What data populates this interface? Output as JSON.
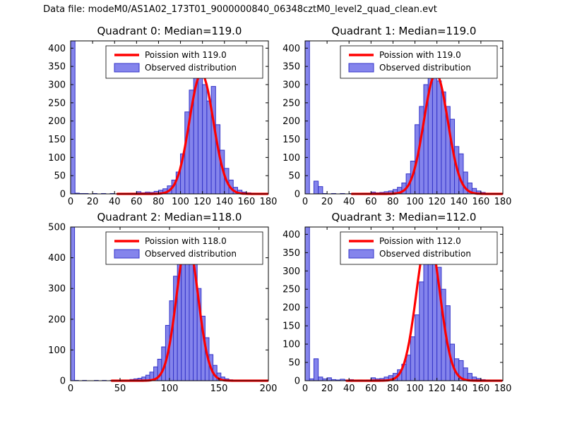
{
  "figure_title": "Data file: modeM0/AS1A02_173T01_9000000840_06348cztM0_level2_quad_clean.evt",
  "colors": {
    "hist_fill": "#8484ec",
    "hist_edge": "#3434c8",
    "curve": "#ff0000",
    "axis": "#000000",
    "background": "#ffffff",
    "legend_border": "#000000"
  },
  "chart_data": [
    {
      "type": "bar",
      "subtype": "histogram-with-fit-line",
      "title": "Quadrant 0: Median=119.0",
      "median": 119.0,
      "legend": [
        "Poission with 119.0",
        "Observed distribution"
      ],
      "legend_position": "upper right",
      "xlabel": "",
      "ylabel": "",
      "xlim": [
        0,
        180
      ],
      "ylim": [
        0,
        420
      ],
      "x_ticks": [
        0,
        20,
        40,
        60,
        80,
        100,
        120,
        140,
        160,
        180
      ],
      "y_ticks": [
        0,
        50,
        100,
        150,
        200,
        250,
        300,
        350,
        400
      ],
      "grid": false,
      "bin_start": 0,
      "bin_width": 4,
      "counts": [
        420,
        2,
        1,
        1,
        0,
        1,
        0,
        1,
        0,
        1,
        0,
        1,
        1,
        2,
        2,
        6,
        3,
        5,
        4,
        7,
        10,
        14,
        22,
        38,
        60,
        110,
        225,
        285,
        320,
        330,
        300,
        255,
        295,
        190,
        120,
        70,
        38,
        18,
        10,
        5,
        3,
        2,
        1,
        0,
        1
      ],
      "curve": {
        "label": "Poission with 119.0",
        "mean": 119.0,
        "sigma": 10.9,
        "amplitude": 330
      }
    },
    {
      "type": "bar",
      "subtype": "histogram-with-fit-line",
      "title": "Quadrant 1: Median=119.0",
      "median": 119.0,
      "legend": [
        "Poission with 119.0",
        "Observed distribution"
      ],
      "legend_position": "upper right",
      "xlabel": "",
      "ylabel": "",
      "xlim": [
        0,
        180
      ],
      "ylim": [
        0,
        420
      ],
      "x_ticks": [
        0,
        20,
        40,
        60,
        80,
        100,
        120,
        140,
        160,
        180
      ],
      "y_ticks": [
        0,
        50,
        100,
        150,
        200,
        250,
        300,
        350,
        400
      ],
      "grid": false,
      "bin_start": 0,
      "bin_width": 4,
      "counts": [
        420,
        0,
        35,
        20,
        1,
        0,
        1,
        0,
        1,
        0,
        1,
        1,
        1,
        2,
        2,
        5,
        3,
        4,
        6,
        8,
        12,
        18,
        30,
        55,
        90,
        190,
        240,
        300,
        330,
        320,
        310,
        280,
        240,
        205,
        130,
        110,
        60,
        30,
        15,
        8,
        4,
        2,
        1,
        1,
        0
      ],
      "curve": {
        "label": "Poission with 119.0",
        "mean": 119.0,
        "sigma": 10.9,
        "amplitude": 330
      }
    },
    {
      "type": "bar",
      "subtype": "histogram-with-fit-line",
      "title": "Quadrant 2: Median=118.0",
      "median": 118.0,
      "legend": [
        "Poission with 118.0",
        "Observed distribution"
      ],
      "legend_position": "upper right",
      "xlabel": "",
      "ylabel": "",
      "xlim": [
        0,
        200
      ],
      "ylim": [
        0,
        500
      ],
      "x_ticks": [
        0,
        50,
        100,
        150,
        200
      ],
      "y_ticks": [
        0,
        100,
        200,
        300,
        400,
        500
      ],
      "grid": false,
      "bin_start": 0,
      "bin_width": 4,
      "counts": [
        500,
        1,
        0,
        1,
        0,
        0,
        1,
        0,
        1,
        0,
        1,
        0,
        1,
        1,
        2,
        4,
        6,
        8,
        12,
        18,
        28,
        45,
        70,
        110,
        180,
        260,
        340,
        420,
        470,
        480,
        440,
        380,
        300,
        210,
        140,
        85,
        50,
        25,
        12,
        6,
        3,
        2,
        1,
        1,
        0,
        1,
        2,
        0,
        0,
        0
      ],
      "curve": {
        "label": "Poission with 118.0",
        "mean": 118.0,
        "sigma": 10.9,
        "amplitude": 455
      }
    },
    {
      "type": "bar",
      "subtype": "histogram-with-fit-line",
      "title": "Quadrant 3: Median=112.0",
      "median": 112.0,
      "legend": [
        "Poission with 112.0",
        "Observed distribution"
      ],
      "legend_position": "upper right",
      "xlabel": "",
      "ylabel": "",
      "xlim": [
        0,
        180
      ],
      "ylim": [
        0,
        420
      ],
      "x_ticks": [
        0,
        20,
        40,
        60,
        80,
        100,
        120,
        140,
        160,
        180
      ],
      "y_ticks": [
        0,
        50,
        100,
        150,
        200,
        250,
        300,
        350,
        400
      ],
      "grid": false,
      "bin_start": 0,
      "bin_width": 4,
      "counts": [
        420,
        5,
        60,
        10,
        5,
        8,
        3,
        2,
        4,
        2,
        3,
        1,
        2,
        1,
        2,
        8,
        5,
        6,
        10,
        14,
        20,
        30,
        45,
        70,
        120,
        180,
        270,
        360,
        400,
        370,
        310,
        250,
        205,
        100,
        60,
        55,
        35,
        20,
        10,
        6,
        3,
        2,
        1,
        0,
        1
      ],
      "curve": {
        "label": "Poission with 112.0",
        "mean": 112.0,
        "sigma": 10.6,
        "amplitude": 400
      }
    }
  ]
}
